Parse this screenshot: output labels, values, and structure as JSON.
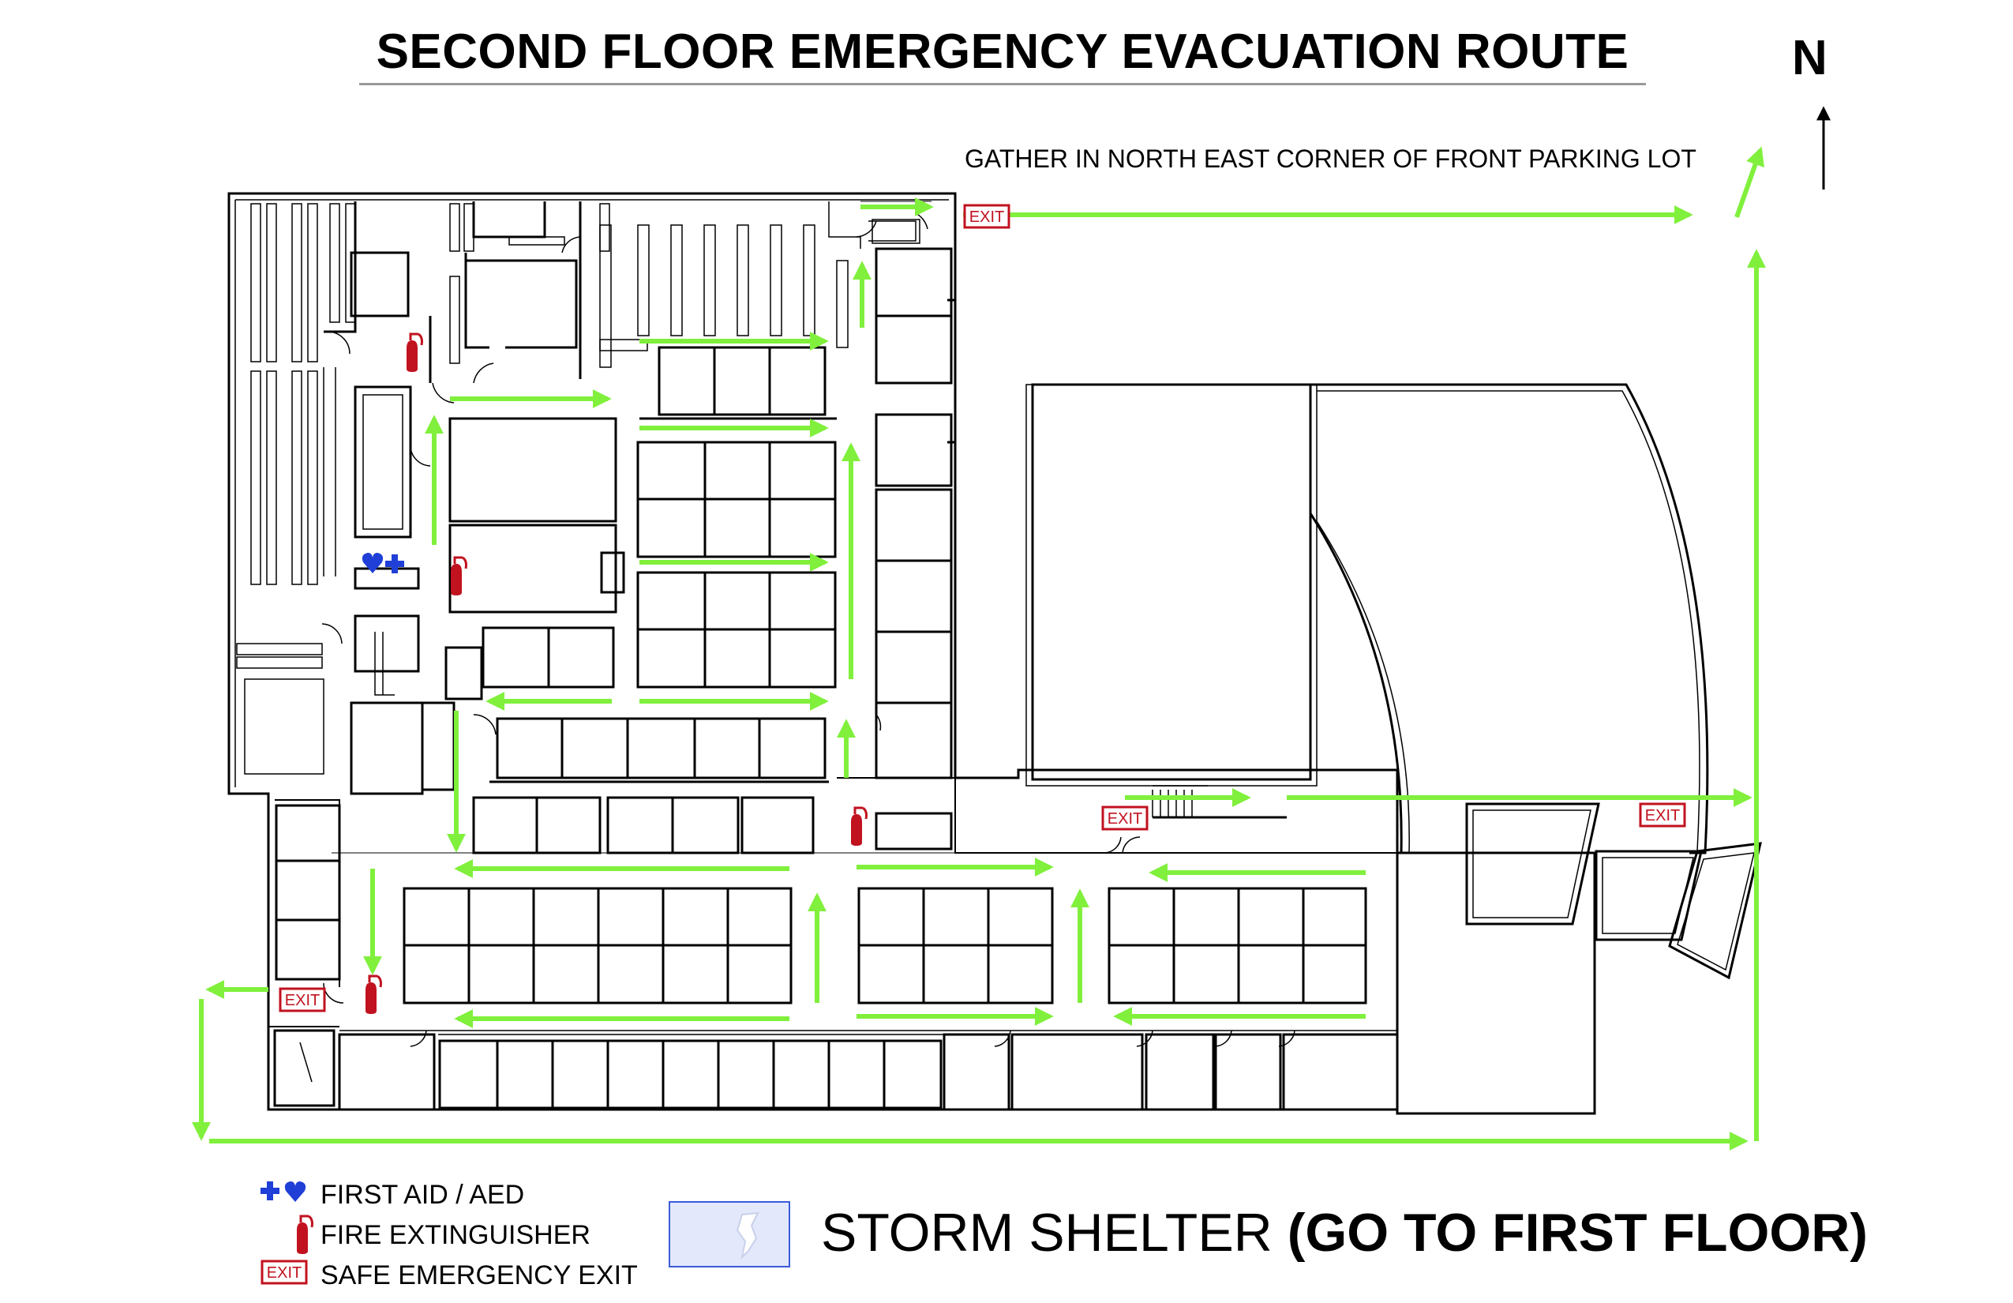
{
  "title": "SECOND FLOOR EMERGENCY EVACUATION ROUTE",
  "north_label": "N",
  "gather_note": "GATHER IN NORTH EAST CORNER OF FRONT PARKING LOT",
  "exit_sign_text": "EXIT",
  "legend": {
    "first_aid": "FIRST AID / AED",
    "fire_extinguisher": "FIRE EXTINGUISHER",
    "safe_exit": "SAFE EMERGENCY EXIT",
    "storm_shelter": "STORM SHELTER",
    "storm_shelter_note": "(GO TO FIRST FLOOR)"
  },
  "colors": {
    "route_arrow": "#80f03c",
    "exit_sign": "#c1121f",
    "fire_extinguisher": "#c1121f",
    "first_aid": "#1f3fd6",
    "storm_shelter_fill": "#e3e8fb",
    "storm_shelter_border": "#3a5bd9",
    "walls": "#000000"
  },
  "icons": [
    "first-aid-icon",
    "aed-icon",
    "fire-extinguisher-icon",
    "exit-sign-icon",
    "storm-shelter-icon",
    "north-arrow-icon"
  ]
}
